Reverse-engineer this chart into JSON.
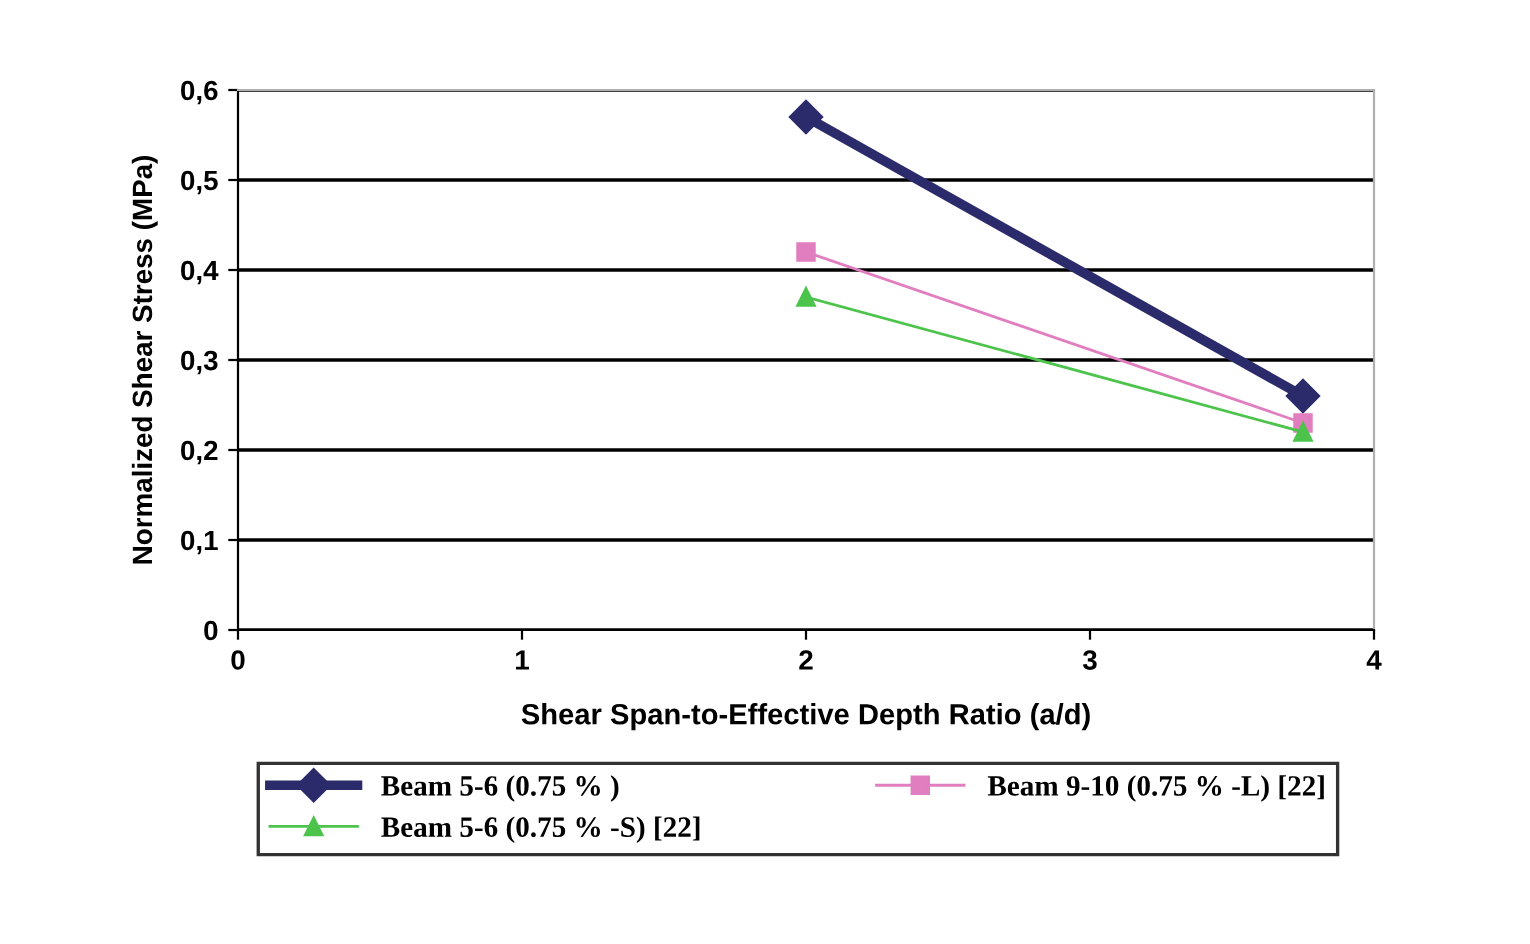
{
  "chart_data": {
    "type": "line",
    "xlabel": "Shear Span-to-Effective Depth Ratio (a/d)",
    "ylabel": "Normalized Shear Stress (MPa)",
    "x": [
      2,
      3.75
    ],
    "series": [
      {
        "name": "Beam 5-6 (0.75 % )",
        "color": "#2b2a6b",
        "values": [
          0.57,
          0.26
        ],
        "marker": "diamond"
      },
      {
        "name": "Beam 9-10 (0.75 % -L) [22]",
        "color": "#e07ec0",
        "values": [
          0.42,
          0.23
        ],
        "marker": "square"
      },
      {
        "name": "Beam 5-6 (0.75 % -S) [22]",
        "color": "#4cc44c",
        "values": [
          0.37,
          0.22
        ],
        "marker": "triangle"
      }
    ],
    "xlim": [
      0,
      4
    ],
    "xticks": [
      0,
      1,
      2,
      3,
      4
    ],
    "ylim": [
      0,
      0.6
    ],
    "yticks": [
      0,
      {
        "value": 0.1,
        "label": "0,1"
      },
      {
        "value": 0.2,
        "label": "0,2"
      },
      {
        "value": 0.3,
        "label": "0,3"
      },
      {
        "value": 0.4,
        "label": "0,4"
      },
      {
        "value": 0.5,
        "label": "0,5"
      },
      {
        "value": 0.6,
        "label": "0,6"
      }
    ],
    "grid": "y",
    "legend": "bottom",
    "line_style": "solid"
  }
}
